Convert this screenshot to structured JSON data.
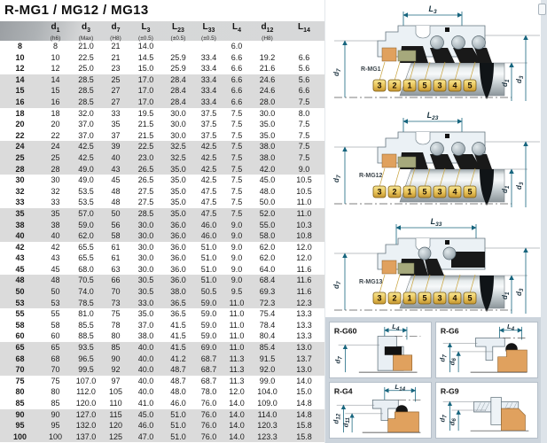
{
  "title": "R-MG1 / MG12 / MG13",
  "table": {
    "headers": [
      {
        "base": "",
        "sub": "",
        "tol": ""
      },
      {
        "base": "d",
        "sub": "1",
        "tol": "(h6)"
      },
      {
        "base": "d",
        "sub": "3",
        "tol": "(Max)"
      },
      {
        "base": "d",
        "sub": "7",
        "tol": "(H8)"
      },
      {
        "base": "L",
        "sub": "3",
        "tol": "(±0.5)"
      },
      {
        "base": "L",
        "sub": "23",
        "tol": "(±0.5)"
      },
      {
        "base": "L",
        "sub": "33",
        "tol": "(±0.5)"
      },
      {
        "base": "L",
        "sub": "4",
        "tol": ""
      },
      {
        "base": "d",
        "sub": "12",
        "tol": "(H8)"
      },
      {
        "base": "L",
        "sub": "14",
        "tol": ""
      }
    ],
    "rows": [
      [
        "8",
        "8",
        "21.0",
        "21",
        "14.0",
        "",
        "",
        "6.0",
        "",
        ""
      ],
      [
        "10",
        "10",
        "22.5",
        "21",
        "14.5",
        "25.9",
        "33.4",
        "6.6",
        "19.2",
        "6.6"
      ],
      [
        "12",
        "12",
        "25.0",
        "23",
        "15.0",
        "25.9",
        "33.4",
        "6.6",
        "21.6",
        "5.6"
      ],
      [
        "14",
        "14",
        "28.5",
        "25",
        "17.0",
        "28.4",
        "33.4",
        "6.6",
        "24.6",
        "5.6"
      ],
      [
        "15",
        "15",
        "28.5",
        "27",
        "17.0",
        "28.4",
        "33.4",
        "6.6",
        "24.6",
        "6.6"
      ],
      [
        "16",
        "16",
        "28.5",
        "27",
        "17.0",
        "28.4",
        "33.4",
        "6.6",
        "28.0",
        "7.5"
      ],
      [
        "18",
        "18",
        "32.0",
        "33",
        "19.5",
        "30.0",
        "37.5",
        "7.5",
        "30.0",
        "8.0"
      ],
      [
        "20",
        "20",
        "37.0",
        "35",
        "21.5",
        "30.0",
        "37.5",
        "7.5",
        "35.0",
        "7.5"
      ],
      [
        "22",
        "22",
        "37.0",
        "37",
        "21.5",
        "30.0",
        "37.5",
        "7.5",
        "35.0",
        "7.5"
      ],
      [
        "24",
        "24",
        "42.5",
        "39",
        "22.5",
        "32.5",
        "42.5",
        "7.5",
        "38.0",
        "7.5"
      ],
      [
        "25",
        "25",
        "42.5",
        "40",
        "23.0",
        "32.5",
        "42.5",
        "7.5",
        "38.0",
        "7.5"
      ],
      [
        "28",
        "28",
        "49.0",
        "43",
        "26.5",
        "35.0",
        "42.5",
        "7.5",
        "42.0",
        "9.0"
      ],
      [
        "30",
        "30",
        "49.0",
        "45",
        "26.5",
        "35.0",
        "42.5",
        "7.5",
        "45.0",
        "10.5"
      ],
      [
        "32",
        "32",
        "53.5",
        "48",
        "27.5",
        "35.0",
        "47.5",
        "7.5",
        "48.0",
        "10.5"
      ],
      [
        "33",
        "33",
        "53.5",
        "48",
        "27.5",
        "35.0",
        "47.5",
        "7.5",
        "50.0",
        "11.0"
      ],
      [
        "35",
        "35",
        "57.0",
        "50",
        "28.5",
        "35.0",
        "47.5",
        "7.5",
        "52.0",
        "11.0"
      ],
      [
        "38",
        "38",
        "59.0",
        "56",
        "30.0",
        "36.0",
        "46.0",
        "9.0",
        "55.0",
        "10.3"
      ],
      [
        "40",
        "40",
        "62.0",
        "58",
        "30.0",
        "36.0",
        "46.0",
        "9.0",
        "58.0",
        "10.8"
      ],
      [
        "42",
        "42",
        "65.5",
        "61",
        "30.0",
        "36.0",
        "51.0",
        "9.0",
        "62.0",
        "12.0"
      ],
      [
        "43",
        "43",
        "65.5",
        "61",
        "30.0",
        "36.0",
        "51.0",
        "9.0",
        "62.0",
        "12.0"
      ],
      [
        "45",
        "45",
        "68.0",
        "63",
        "30.0",
        "36.0",
        "51.0",
        "9.0",
        "64.0",
        "11.6"
      ],
      [
        "48",
        "48",
        "70.5",
        "66",
        "30.5",
        "36.0",
        "51.0",
        "9.0",
        "68.4",
        "11.6"
      ],
      [
        "50",
        "50",
        "74.0",
        "70",
        "30.5",
        "38.0",
        "50.5",
        "9.5",
        "69.3",
        "11.6"
      ],
      [
        "53",
        "53",
        "78.5",
        "73",
        "33.0",
        "36.5",
        "59.0",
        "11.0",
        "72.3",
        "12.3"
      ],
      [
        "55",
        "55",
        "81.0",
        "75",
        "35.0",
        "36.5",
        "59.0",
        "11.0",
        "75.4",
        "13.3"
      ],
      [
        "58",
        "58",
        "85.5",
        "78",
        "37.0",
        "41.5",
        "59.0",
        "11.0",
        "78.4",
        "13.3"
      ],
      [
        "60",
        "60",
        "88.5",
        "80",
        "38.0",
        "41.5",
        "59.0",
        "11.0",
        "80.4",
        "13.3"
      ],
      [
        "65",
        "65",
        "93.5",
        "85",
        "40.0",
        "41.5",
        "69.0",
        "11.0",
        "85.4",
        "13.0"
      ],
      [
        "68",
        "68",
        "96.5",
        "90",
        "40.0",
        "41.2",
        "68.7",
        "11.3",
        "91.5",
        "13.7"
      ],
      [
        "70",
        "70",
        "99.5",
        "92",
        "40.0",
        "48.7",
        "68.7",
        "11.3",
        "92.0",
        "13.0"
      ],
      [
        "75",
        "75",
        "107.0",
        "97",
        "40.0",
        "48.7",
        "68.7",
        "11.3",
        "99.0",
        "14.0"
      ],
      [
        "80",
        "80",
        "112.0",
        "105",
        "40.0",
        "48.0",
        "78.0",
        "12.0",
        "104.0",
        "15.0"
      ],
      [
        "85",
        "85",
        "120.0",
        "110",
        "41.0",
        "46.0",
        "76.0",
        "14.0",
        "109.0",
        "14.8"
      ],
      [
        "90",
        "90",
        "127.0",
        "115",
        "45.0",
        "51.0",
        "76.0",
        "14.0",
        "114.0",
        "14.8"
      ],
      [
        "95",
        "95",
        "132.0",
        "120",
        "46.0",
        "51.0",
        "76.0",
        "14.0",
        "120.3",
        "15.8"
      ],
      [
        "100",
        "100",
        "137.0",
        "125",
        "47.0",
        "51.0",
        "76.0",
        "14.0",
        "123.3",
        "15.8"
      ]
    ]
  },
  "seal_diagrams": [
    {
      "name": "R-MG1",
      "dim": {
        "base": "L",
        "sub": "3"
      },
      "shaft_dim": {
        "base": "d",
        "sub": "7"
      },
      "right_dims": [
        {
          "base": "d",
          "sub": "1"
        },
        {
          "base": "d",
          "sub": "3"
        }
      ],
      "tags": [
        "3",
        "2",
        "1",
        "5",
        "3",
        "4",
        "5"
      ]
    },
    {
      "name": "R-MG12",
      "dim": {
        "base": "L",
        "sub": "23"
      },
      "shaft_dim": {
        "base": "d",
        "sub": "7"
      },
      "right_dims": [
        {
          "base": "d",
          "sub": "1"
        },
        {
          "base": "d",
          "sub": "3"
        }
      ],
      "tags": [
        "3",
        "2",
        "1",
        "5",
        "3",
        "4",
        "5"
      ]
    },
    {
      "name": "R-MG13",
      "dim": {
        "base": "L",
        "sub": "33"
      },
      "shaft_dim": {
        "base": "d",
        "sub": "7"
      },
      "right_dims": [
        {
          "base": "d",
          "sub": "1"
        },
        {
          "base": "d",
          "sub": "3"
        }
      ],
      "tags": [
        "3",
        "2",
        "1",
        "5",
        "3",
        "4",
        "5"
      ]
    }
  ],
  "detail_diagrams": [
    {
      "name": "R-G60",
      "dim": {
        "base": "L",
        "sub": "4"
      },
      "dims": [
        {
          "base": "d",
          "sub": "7"
        }
      ]
    },
    {
      "name": "R-G6",
      "dim": {
        "base": "L",
        "sub": "4"
      },
      "dims": [
        {
          "base": "d",
          "sub": "7"
        },
        {
          "base": "d",
          "sub": "6"
        }
      ]
    },
    {
      "name": "R-G4",
      "dim": {
        "base": "L",
        "sub": "14"
      },
      "dims": [
        {
          "base": "d",
          "sub": "12"
        },
        {
          "base": "d",
          "sub": "11"
        }
      ]
    },
    {
      "name": "R-G9",
      "dims": [
        {
          "base": "d",
          "sub": "7"
        },
        {
          "base": "d",
          "sub": "6"
        }
      ]
    }
  ],
  "colors": {
    "dimension": "#17657e",
    "tag_gold": "#e7c257",
    "seat_orange": "#e0a15e",
    "row_band": "#dbdbdb"
  }
}
